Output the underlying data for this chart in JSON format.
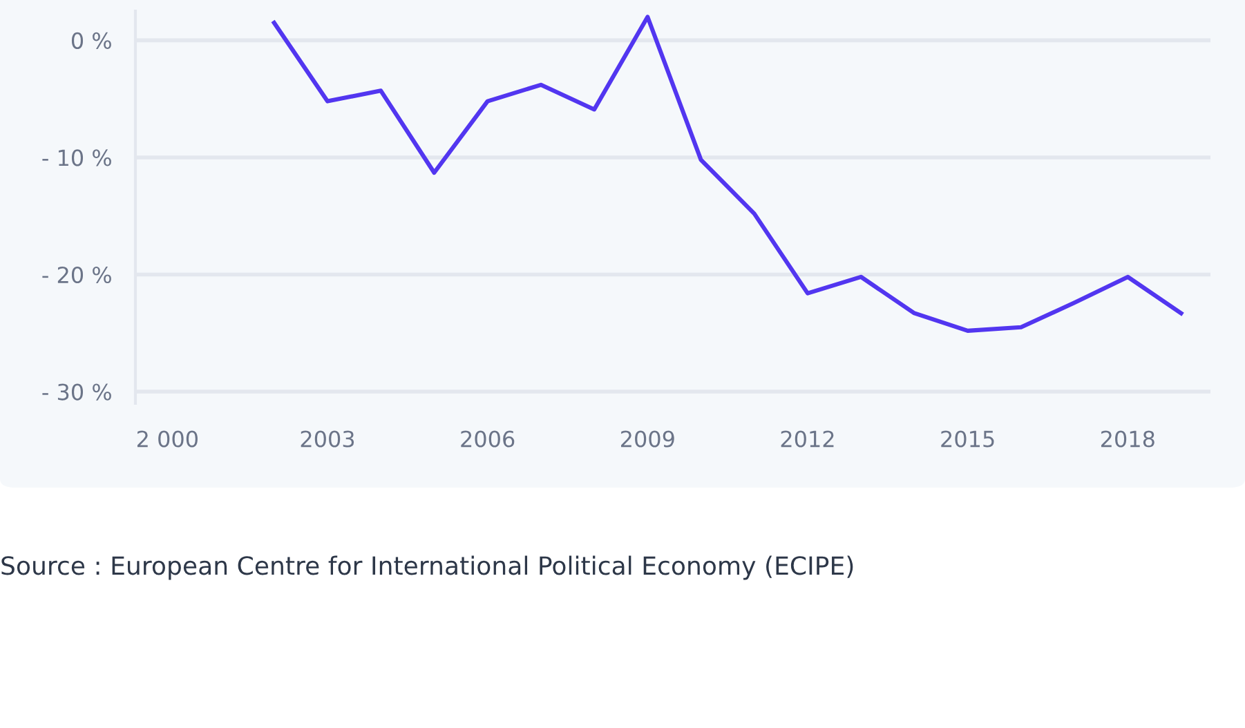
{
  "chart_data": {
    "type": "line",
    "x": [
      2002,
      2003,
      2004,
      2005,
      2006,
      2007,
      2008,
      2009,
      2010,
      2011,
      2012,
      2013,
      2014,
      2015,
      2016,
      2017,
      2018,
      2019
    ],
    "series": [
      {
        "color": "#5236f0",
        "values": [
          1.5,
          -5.2,
          -4.3,
          -11.3,
          -5.2,
          -3.8,
          -5.9,
          2,
          -10.2,
          -14.8,
          -21.6,
          -20.2,
          -23.3,
          -24.8,
          -24.5,
          -22.4,
          -20.2,
          -23.3
        ]
      }
    ],
    "xlim": [
      1999.4,
      2019.55
    ],
    "xticks": [
      {
        "value": 2000,
        "label": "2 000"
      },
      2003,
      2006,
      2009,
      2012,
      2015,
      2018
    ],
    "ylim": [
      -31,
      2.5
    ],
    "yticks": [
      {
        "value": -30,
        "label": "- 30 %"
      },
      {
        "value": -20,
        "label": "- 20 %"
      },
      {
        "value": -10,
        "label": "- 10 %"
      },
      {
        "value": 0,
        "label": "0 %"
      }
    ],
    "grid": "y",
    "marker": "none",
    "line_style": "solid",
    "annotations": [
      "Source : European Centre for International Political Economy (ECIPE)"
    ]
  }
}
